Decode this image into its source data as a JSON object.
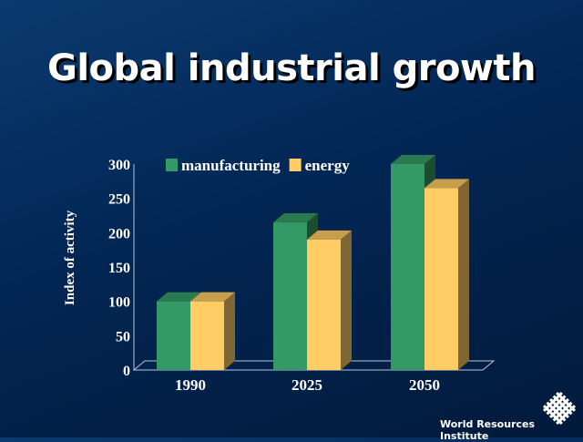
{
  "title": "Global industrial growth",
  "footer": "World Resources Institute",
  "chart_data": {
    "type": "bar",
    "style": "3d-clustered",
    "categories": [
      "1990",
      "2025",
      "2050"
    ],
    "series": [
      {
        "name": "manufacturing",
        "values": [
          100,
          215,
          300
        ],
        "color": "#339966",
        "top": "#2a7a50",
        "side": "#1c4d31"
      },
      {
        "name": "energy",
        "values": [
          100,
          190,
          265
        ],
        "color": "#ffcc66",
        "top": "#c79e4c",
        "side": "#7f6633"
      }
    ],
    "ylabel": "Index of activity",
    "xlabel": "",
    "ylim": [
      0,
      300
    ],
    "yticks": [
      0,
      50,
      100,
      150,
      200,
      250,
      300
    ],
    "legend": "top",
    "grid": false
  }
}
